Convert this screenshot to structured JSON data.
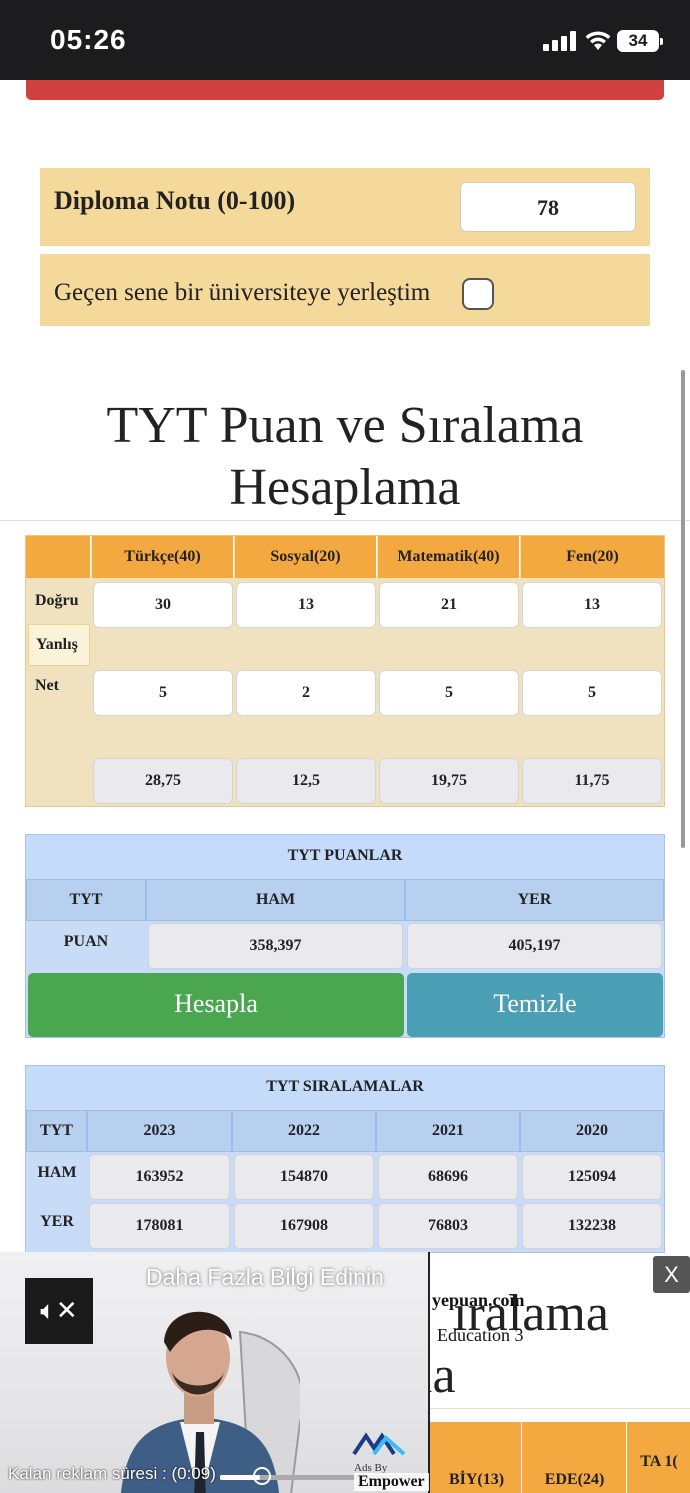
{
  "status_bar": {
    "time": "05:26",
    "battery": "34"
  },
  "diploma": {
    "label": "Diploma Notu (0-100)",
    "value": "78",
    "checkbox_label": "Geçen sene bir üniversiteye yerleştim"
  },
  "title": {
    "line1": "TYT Puan ve Sıralama",
    "line2": "Hesaplama"
  },
  "net_table": {
    "headers": [
      "Türkçe(40)",
      "Sosyal(20)",
      "Matematik(40)",
      "Fen(20)"
    ],
    "row_labels": {
      "dogru": "Doğru",
      "yanlis": "Yanlış",
      "net": "Net"
    },
    "dogru": [
      "30",
      "13",
      "21",
      "13"
    ],
    "yanlis": [
      "5",
      "2",
      "5",
      "5"
    ],
    "net": [
      "28,75",
      "12,5",
      "19,75",
      "11,75"
    ]
  },
  "puan_table": {
    "title": "TYT PUANLAR",
    "headers": [
      "TYT",
      "HAM",
      "YER"
    ],
    "row_label": "PUAN",
    "ham": "358,397",
    "yer": "405,197",
    "calc_button": "Hesapla",
    "clear_button": "Temizle"
  },
  "siralama_table": {
    "title": "TYT SIRALAMALAR",
    "headers": [
      "TYT",
      "2023",
      "2022",
      "2021",
      "2020"
    ],
    "rows": [
      {
        "label": "HAM",
        "values": [
          "163952",
          "154870",
          "68696",
          "125094"
        ]
      },
      {
        "label": "YER",
        "values": [
          "178081",
          "167908",
          "76803",
          "132238"
        ]
      }
    ]
  },
  "background_partial": {
    "title_part1": "ıralama",
    "title_part2": "ıa",
    "headers": [
      "BİY(13)",
      "EDE(24)",
      "TA 1("
    ]
  },
  "ad": {
    "headline": "Daha Fazla Bilgi Edinin",
    "timer": "Kalan reklam süresi : (0:09)",
    "side_site": "yepuan.com",
    "side_text": "Education 3",
    "ads_by": "Ads By",
    "brand": "Empower",
    "close": "X",
    "progress": 0.2
  }
}
